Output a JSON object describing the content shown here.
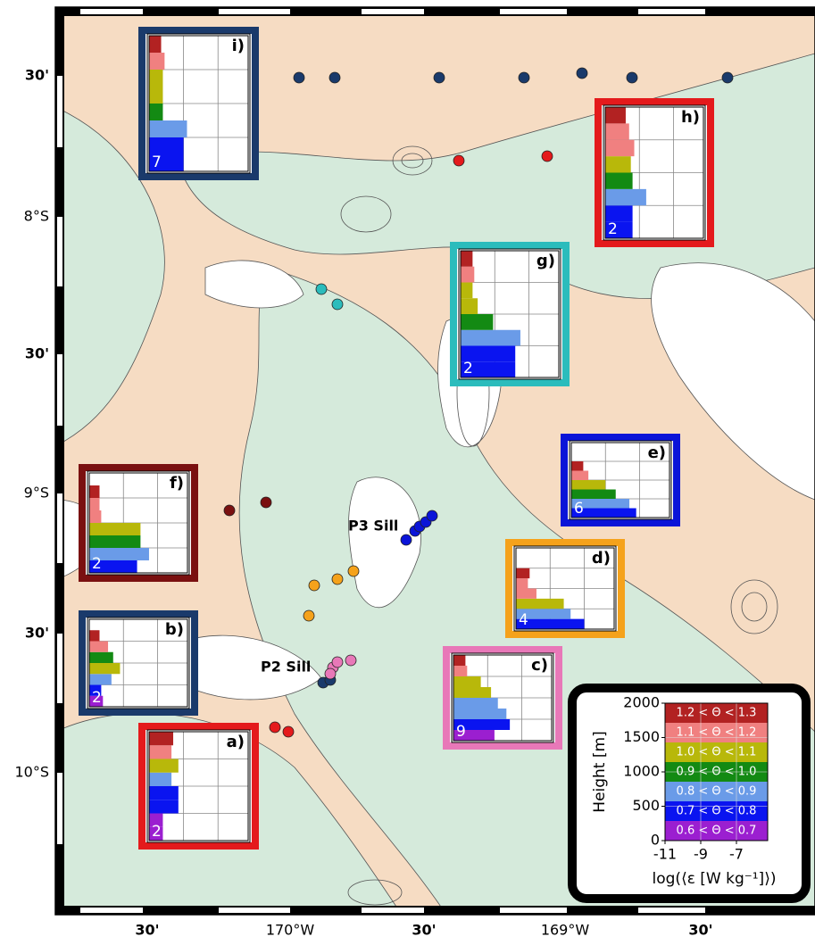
{
  "map": {
    "y_labels": [
      "30'",
      "8°S",
      "30'",
      "9°S",
      "30'",
      "10°S"
    ],
    "x_labels": [
      "30'",
      "170°W",
      "30'",
      "169°W",
      "30'"
    ],
    "annotations": [
      "P3 Sill",
      "P2 Sill"
    ]
  },
  "chart_data": {
    "type": "bar",
    "xlabel": "log(⟨ε [W kg⁻¹]⟩)",
    "ylabel": "Height [m]",
    "xlim": [
      -11,
      -5.25
    ],
    "xticks": [
      -11,
      -9,
      -7
    ],
    "ylim": [
      0,
      2000
    ],
    "yticks": [
      0,
      500,
      1000,
      1500,
      2000
    ],
    "height_bins": [
      0,
      250,
      500,
      750,
      1000,
      1250,
      1500,
      1750,
      2000
    ],
    "legend": [
      {
        "name": "1.2 < Θ < 1.3",
        "color": "#b22222"
      },
      {
        "name": "1.1 < Θ < 1.2",
        "color": "#f08080"
      },
      {
        "name": "1.0 < Θ < 1.1",
        "color": "#b8b80a"
      },
      {
        "name": "0.9 < Θ < 1.0",
        "color": "#138a13"
      },
      {
        "name": "0.8 < Θ < 0.9",
        "color": "#6a9be8"
      },
      {
        "name": "0.7 < Θ < 0.8",
        "color": "#0a14f0"
      },
      {
        "name": "0.6 < Θ < 0.7",
        "color": "#9b1fd0"
      }
    ],
    "panels": [
      {
        "label": "i)",
        "count": 7,
        "frame_color": "#1a3a6b",
        "values": [
          -9,
          -9,
          -8.8,
          -10.2,
          -10.2,
          -10.2,
          -10.1,
          -10.3
        ],
        "colors": [
          "#0a14f0",
          "#0a14f0",
          "#6a9be8",
          "#138a13",
          "#b8b80a",
          "#b8b80a",
          "#f08080",
          "#b22222"
        ]
      },
      {
        "label": "h)",
        "count": 2,
        "frame_color": "#e41a1c",
        "values": [
          -9.4,
          -9.4,
          -8.6,
          -9.4,
          -9.5,
          -9.3,
          -9.6,
          -9.8
        ],
        "colors": [
          "#0a14f0",
          "#0a14f0",
          "#6a9be8",
          "#138a13",
          "#b8b80a",
          "#f08080",
          "#f08080",
          "#b22222"
        ]
      },
      {
        "label": "g)",
        "count": 2,
        "frame_color": "#2bbcbc",
        "values": [
          -7.8,
          -7.8,
          -7.5,
          -9.1,
          -10,
          -10.3,
          -10.2,
          -10.3
        ],
        "colors": [
          "#0a14f0",
          "#0a14f0",
          "#6a9be8",
          "#138a13",
          "#b8b80a",
          "#b8b80a",
          "#f08080",
          "#b22222"
        ]
      },
      {
        "label": "e)",
        "count": 6,
        "frame_color": "#0a14d8",
        "values": [
          -7.2,
          -7.6,
          -8.4,
          -9,
          -10,
          -10.3
        ],
        "colors": [
          "#0a14f0",
          "#6a9be8",
          "#138a13",
          "#b8b80a",
          "#f08080",
          "#b22222"
        ]
      },
      {
        "label": "f)",
        "count": 2,
        "frame_color": "#7a1010",
        "values": [
          -8.2,
          -7.5,
          -8,
          -8,
          -10.3,
          -10.4,
          -10.4
        ],
        "colors": [
          "#0a14f0",
          "#6a9be8",
          "#138a13",
          "#b8b80a",
          "#f08080",
          "#f08080",
          "#b22222"
        ]
      },
      {
        "label": "d)",
        "count": 4,
        "frame_color": "#f5a21b",
        "values": [
          -7,
          -7.8,
          -8.2,
          -9.8,
          -10.3,
          -10.2
        ],
        "colors": [
          "#0a14f0",
          "#6a9be8",
          "#b8b80a",
          "#f08080",
          "#f08080",
          "#b22222"
        ]
      },
      {
        "label": "b)",
        "count": 2,
        "frame_color": "#1a3a6b",
        "values": [
          -10.2,
          -10.3,
          -9.7,
          -9.2,
          -9.6,
          -9.9,
          -10.4
        ],
        "colors": [
          "#9b1fd0",
          "#0a14f0",
          "#6a9be8",
          "#b8b80a",
          "#138a13",
          "#f08080",
          "#b22222"
        ]
      },
      {
        "label": "c)",
        "count": 9,
        "frame_color": "#e878b8",
        "values": [
          -8.6,
          -7.7,
          -7.9,
          -8.4,
          -8.8,
          -9.4,
          -10.2,
          -10.3
        ],
        "colors": [
          "#9b1fd0",
          "#0a14f0",
          "#6a9be8",
          "#6a9be8",
          "#b8b80a",
          "#b8b80a",
          "#f08080",
          "#b22222"
        ]
      },
      {
        "label": "a)",
        "count": 2,
        "frame_color": "#e41a1c",
        "values": [
          -10.2,
          -10.2,
          -9.3,
          -9.3,
          -9.7,
          -9.3,
          -9.7,
          -9.6
        ],
        "colors": [
          "#9b1fd0",
          "#9b1fd0",
          "#0a14f0",
          "#0a14f0",
          "#6a9be8",
          "#b8b80a",
          "#f08080",
          "#b22222"
        ]
      }
    ]
  }
}
